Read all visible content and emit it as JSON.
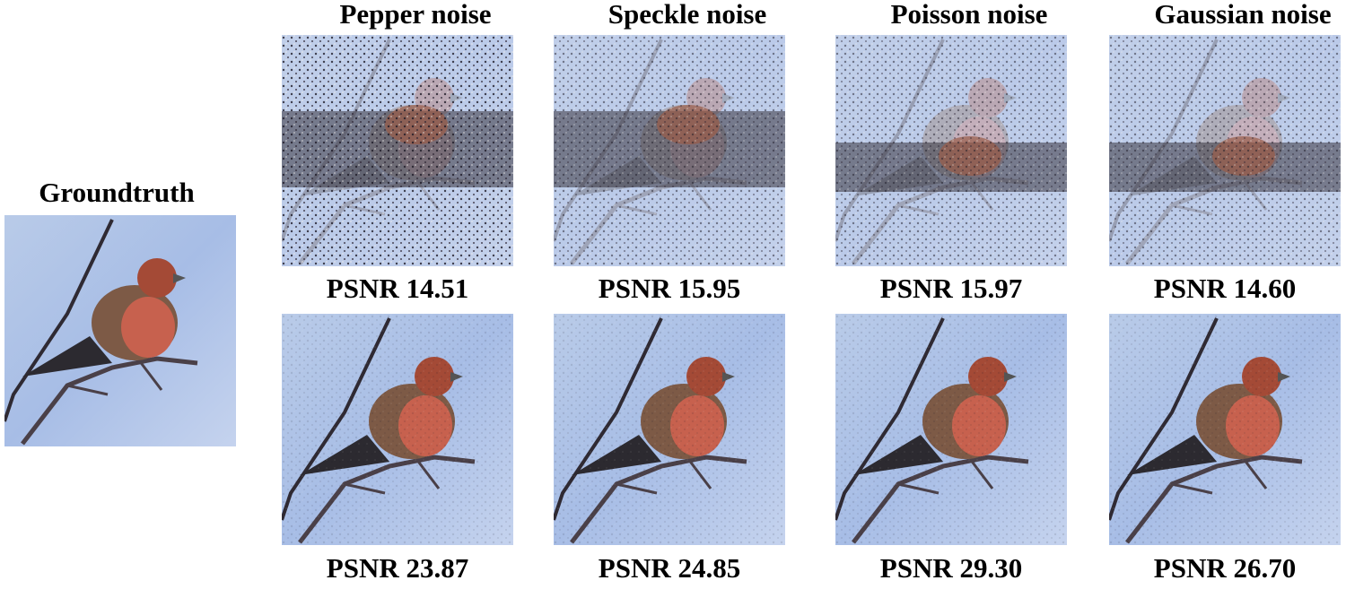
{
  "groundtruth": {
    "label": "Groundtruth"
  },
  "columns": [
    {
      "header": "Pepper noise",
      "psnr_noisy": "PSNR 14.51",
      "psnr_denoised": "PSNR 23.87"
    },
    {
      "header": "Speckle noise",
      "psnr_noisy": "PSNR 15.95",
      "psnr_denoised": "PSNR 24.85"
    },
    {
      "header": "Poisson noise",
      "psnr_noisy": "PSNR 15.97",
      "psnr_denoised": "PSNR 29.30"
    },
    {
      "header": "Gaussian noise",
      "psnr_noisy": "PSNR 14.60",
      "psnr_denoised": "PSNR 26.70"
    }
  ]
}
